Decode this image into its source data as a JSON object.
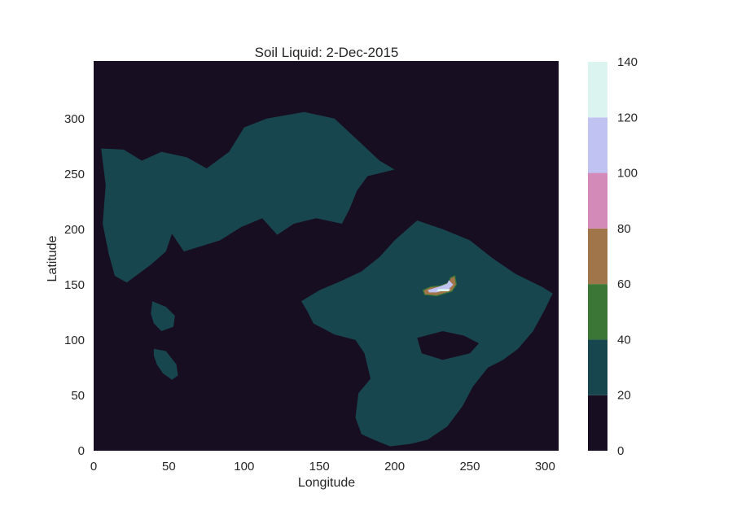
{
  "chart_data": {
    "type": "heatmap",
    "subtype": "filled-contour",
    "title": "Soil Liquid: 2-Dec-2015",
    "xlabel": "Longitude",
    "ylabel": "Latitude",
    "xlim": [
      0,
      309
    ],
    "ylim": [
      0,
      352
    ],
    "x_ticks": [
      0,
      50,
      100,
      150,
      200,
      250,
      300
    ],
    "y_ticks": [
      0,
      50,
      100,
      150,
      200,
      250,
      300
    ],
    "grid": false,
    "colorbar": {
      "levels": [
        0,
        20,
        40,
        60,
        80,
        100,
        120,
        140
      ],
      "tick_labels": [
        "0",
        "20",
        "40",
        "60",
        "80",
        "100",
        "120",
        "140"
      ],
      "colors": [
        "#180e22",
        "#18464e",
        "#3b7636",
        "#a07549",
        "#d38ab9",
        "#c0c2f2",
        "#dcf4ef"
      ]
    },
    "regions": [
      {
        "name": "northwest landmass",
        "level_range": [
          20,
          40
        ],
        "outline": [
          [
            5,
            273
          ],
          [
            20,
            272
          ],
          [
            32,
            262
          ],
          [
            45,
            270
          ],
          [
            62,
            265
          ],
          [
            75,
            255
          ],
          [
            90,
            270
          ],
          [
            100,
            292
          ],
          [
            115,
            300
          ],
          [
            140,
            306
          ],
          [
            160,
            300
          ],
          [
            172,
            285
          ],
          [
            190,
            262
          ],
          [
            200,
            254
          ],
          [
            182,
            248
          ],
          [
            175,
            235
          ],
          [
            170,
            218
          ],
          [
            165,
            205
          ],
          [
            148,
            210
          ],
          [
            133,
            205
          ],
          [
            122,
            195
          ],
          [
            112,
            210
          ],
          [
            98,
            202
          ],
          [
            84,
            190
          ],
          [
            72,
            185
          ],
          [
            60,
            180
          ],
          [
            52,
            196
          ],
          [
            48,
            180
          ],
          [
            38,
            168
          ],
          [
            22,
            152
          ],
          [
            14,
            158
          ],
          [
            10,
            178
          ],
          [
            6,
            205
          ],
          [
            8,
            240
          ]
        ]
      },
      {
        "name": "east landmass",
        "level_range": [
          20,
          40
        ],
        "outline": [
          [
            138,
            135
          ],
          [
            150,
            145
          ],
          [
            164,
            153
          ],
          [
            178,
            162
          ],
          [
            190,
            175
          ],
          [
            200,
            190
          ],
          [
            215,
            208
          ],
          [
            232,
            200
          ],
          [
            250,
            190
          ],
          [
            265,
            174
          ],
          [
            280,
            160
          ],
          [
            298,
            148
          ],
          [
            305,
            142
          ],
          [
            300,
            128
          ],
          [
            292,
            108
          ],
          [
            282,
            92
          ],
          [
            272,
            82
          ],
          [
            262,
            75
          ],
          [
            252,
            58
          ],
          [
            245,
            40
          ],
          [
            235,
            22
          ],
          [
            222,
            10
          ],
          [
            210,
            6
          ],
          [
            197,
            4
          ],
          [
            186,
            10
          ],
          [
            178,
            15
          ],
          [
            174,
            30
          ],
          [
            176,
            52
          ],
          [
            184,
            65
          ],
          [
            180,
            88
          ],
          [
            174,
            100
          ],
          [
            160,
            105
          ],
          [
            146,
            115
          ],
          [
            142,
            126
          ]
        ]
      },
      {
        "name": "inner dry patch",
        "level_range": [
          0,
          20
        ],
        "outline": [
          [
            215,
            102
          ],
          [
            232,
            108
          ],
          [
            246,
            104
          ],
          [
            256,
            97
          ],
          [
            250,
            88
          ],
          [
            232,
            82
          ],
          [
            218,
            88
          ]
        ]
      },
      {
        "name": "southwest islet",
        "level_range": [
          20,
          40
        ],
        "outline": [
          [
            40,
            92
          ],
          [
            48,
            90
          ],
          [
            55,
            78
          ],
          [
            56,
            68
          ],
          [
            52,
            64
          ],
          [
            46,
            70
          ],
          [
            42,
            78
          ],
          [
            40,
            86
          ]
        ]
      },
      {
        "name": "west islet",
        "level_range": [
          20,
          40
        ],
        "outline": [
          [
            39,
            135
          ],
          [
            48,
            130
          ],
          [
            54,
            122
          ],
          [
            53,
            112
          ],
          [
            45,
            108
          ],
          [
            40,
            115
          ],
          [
            38,
            124
          ]
        ]
      },
      {
        "name": "hotspot outer",
        "level_range": [
          40,
          100
        ],
        "outline": [
          [
            219,
            145
          ],
          [
            224,
            148
          ],
          [
            231,
            149
          ],
          [
            236,
            152
          ],
          [
            237,
            156
          ],
          [
            240,
            158
          ],
          [
            241,
            150
          ],
          [
            238,
            144
          ],
          [
            228,
            140
          ],
          [
            220,
            141
          ]
        ]
      },
      {
        "name": "hotspot inner",
        "level_range": [
          100,
          120
        ],
        "outline": [
          [
            222,
            145
          ],
          [
            229,
            148
          ],
          [
            235,
            151
          ],
          [
            236,
            154
          ],
          [
            239,
            150
          ],
          [
            236,
            146
          ],
          [
            228,
            143
          ],
          [
            223,
            143
          ]
        ]
      },
      {
        "name": "hotspot core",
        "level_range": [
          120,
          140
        ],
        "outline": [
          [
            228,
            144
          ],
          [
            236,
            144
          ],
          [
            237,
            146
          ],
          [
            229,
            146
          ]
        ]
      }
    ]
  }
}
